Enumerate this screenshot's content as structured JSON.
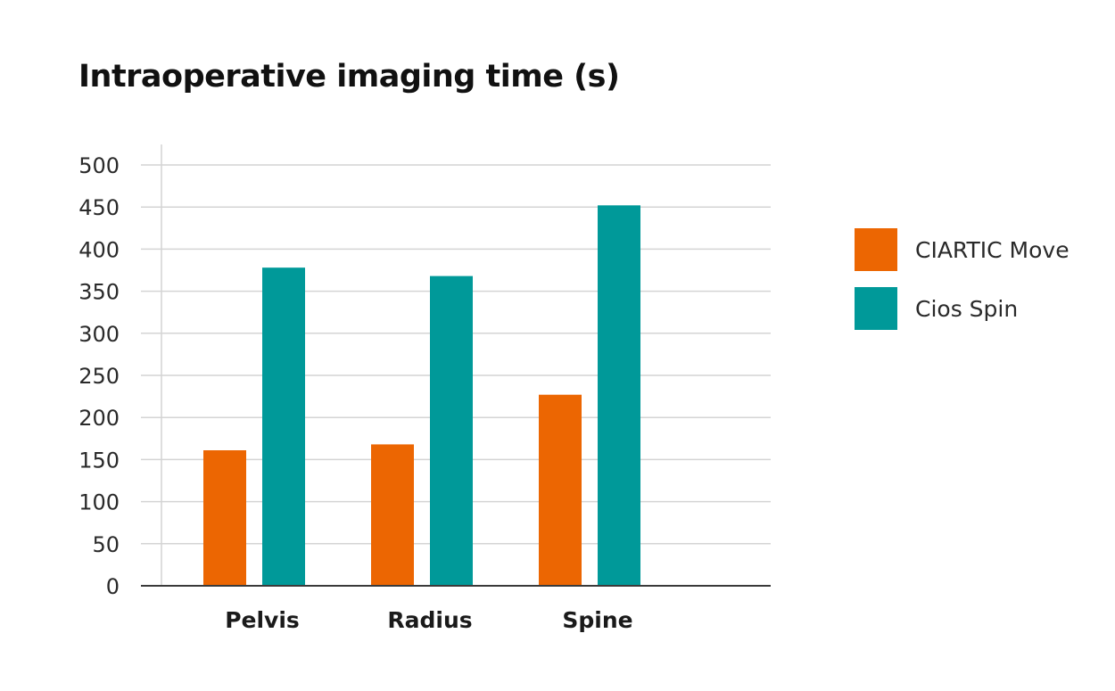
{
  "chart_data": {
    "type": "bar",
    "title": "Intraoperative imaging time (s)",
    "categories": [
      "Pelvis",
      "Radius",
      "Spine"
    ],
    "series": [
      {
        "name": "CIARTIC Move",
        "values": [
          161,
          168,
          227
        ],
        "color": "#EC6602"
      },
      {
        "name": "Cios Spin",
        "values": [
          378,
          368,
          452
        ],
        "color": "#009999"
      }
    ],
    "ylim": [
      0,
      500
    ],
    "yticks": [
      0,
      50,
      100,
      150,
      200,
      250,
      300,
      350,
      400,
      450,
      500
    ],
    "grid": true,
    "legend_position": "right"
  }
}
